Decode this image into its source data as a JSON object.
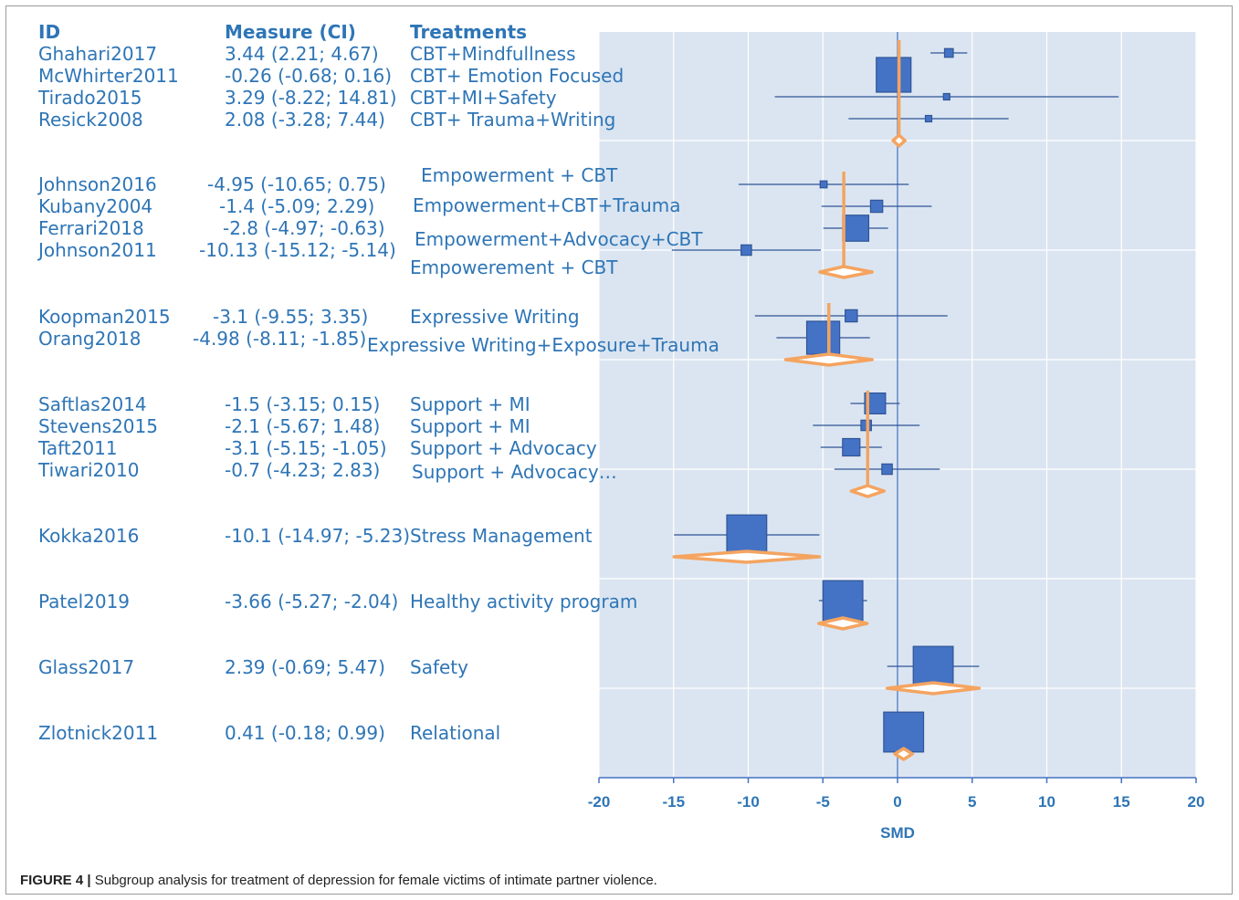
{
  "headers": {
    "id": "ID",
    "measure": "Measure (CI)",
    "treatments": "Treatments"
  },
  "caption": {
    "label": "FIGURE 4 |",
    "text": "Subgroup analysis for treatment of depression for female victims of intimate partner violence."
  },
  "colors": {
    "text": "#2e75b6",
    "box": "#4472c4",
    "line": "#2f5597",
    "diamond": "#f4a460",
    "panel": "#dbe5f1"
  },
  "chart_data": {
    "type": "forest",
    "xlabel": "SMD",
    "xlim": [
      -20,
      20
    ],
    "xticks": [
      -20,
      -15,
      -10,
      -5,
      0,
      5,
      10,
      15,
      20
    ],
    "grid": true,
    "studies": [
      {
        "id": "Ghahari2017",
        "measure": "3.44 (2.21; 4.67)",
        "treatment": "CBT+Mindfullness",
        "est": 3.44,
        "lo": 2.21,
        "hi": 4.67,
        "weight": 0.25
      },
      {
        "id": "McWhirter2011",
        "measure": "-0.26 (-0.68; 0.16)",
        "treatment": "CBT+ Emotion Focused",
        "est": -0.26,
        "lo": -0.68,
        "hi": 0.16,
        "weight": 1.0
      },
      {
        "id": "Tirado2015",
        "measure": "3.29 (-8.22; 14.81)",
        "treatment": "CBT+MI+Safety",
        "est": 3.29,
        "lo": -8.22,
        "hi": 14.81,
        "weight": 0.1
      },
      {
        "id": "Resick2008",
        "measure": "2.08 (-3.28; 7.44)",
        "treatment": "CBT+ Trauma+Writing",
        "est": 2.08,
        "lo": -3.28,
        "hi": 7.44,
        "weight": 0.12
      },
      {
        "id": "Johnson2016",
        "measure": "-4.95 (-10.65; 0.75)",
        "treatment": "Empowerment + CBT",
        "est": -4.95,
        "lo": -10.65,
        "hi": 0.75,
        "weight": 0.2
      },
      {
        "id": "Kubany2004",
        "measure": "-1.4 (-5.09; 2.29)",
        "treatment": "Empowerment+CBT+Trauma",
        "est": -1.4,
        "lo": -5.09,
        "hi": 2.29,
        "weight": 0.35
      },
      {
        "id": "Ferrari2018",
        "measure": "-2.8 (-4.97; -0.63)",
        "treatment": "Empowerment+Advocacy+CBT",
        "est": -2.8,
        "lo": -4.97,
        "hi": -0.63,
        "weight": 0.75
      },
      {
        "id": "Johnson2011",
        "measure": "-10.13 (-15.12; -5.14)",
        "treatment": "Empowerement + CBT",
        "est": -10.13,
        "lo": -15.12,
        "hi": -5.14,
        "weight": 0.3
      },
      {
        "id": "Koopman2015",
        "measure": "-3.1 (-9.55; 3.35)",
        "treatment": "Expressive Writing",
        "est": -3.1,
        "lo": -9.55,
        "hi": 3.35,
        "weight": 0.35
      },
      {
        "id": "Orang2018",
        "measure": "-4.98 (-8.11; -1.85)",
        "treatment": "Expressive Writing+Exposure+Trauma",
        "est": -4.98,
        "lo": -8.11,
        "hi": -1.85,
        "weight": 0.95
      },
      {
        "id": "Saftlas2014",
        "measure": "-1.5 (-3.15; 0.15)",
        "treatment": "Support + MI",
        "est": -1.5,
        "lo": -3.15,
        "hi": 0.15,
        "weight": 0.6
      },
      {
        "id": "Stevens2015",
        "measure": "-2.1 (-5.67; 1.48)",
        "treatment": "Support + MI",
        "est": -2.1,
        "lo": -5.67,
        "hi": 1.48,
        "weight": 0.3
      },
      {
        "id": "Taft2011",
        "measure": "-3.1 (-5.15; -1.05)",
        "treatment": "Support + Advocacy",
        "est": -3.1,
        "lo": -5.15,
        "hi": -1.05,
        "weight": 0.5
      },
      {
        "id": "Tiwari2010",
        "measure": "-0.7 (-4.23; 2.83)",
        "treatment": "Support + Advocacy…",
        "est": -0.7,
        "lo": -4.23,
        "hi": 2.83,
        "weight": 0.3
      },
      {
        "id": "Kokka2016",
        "measure": "-10.1 (-14.97; -5.23)",
        "treatment": "Stress Management",
        "est": -10.1,
        "lo": -14.97,
        "hi": -5.23,
        "weight": 1.15
      },
      {
        "id": "Patel2019",
        "measure": "-3.66 (-5.27; -2.04)",
        "treatment": "Healthy activity program",
        "est": -3.66,
        "lo": -5.27,
        "hi": -2.04,
        "weight": 1.15
      },
      {
        "id": "Glass2017",
        "measure": "2.39 (-0.69; 5.47)",
        "treatment": "Safety",
        "est": 2.39,
        "lo": -0.69,
        "hi": 5.47,
        "weight": 1.15
      },
      {
        "id": "Zlotnick2011",
        "measure": "0.41 (-0.18; 0.99)",
        "treatment": "Relational",
        "est": 0.41,
        "lo": -0.18,
        "hi": 0.99,
        "weight": 1.15
      }
    ],
    "subgroups": [
      {
        "est": 0.1,
        "lo": -0.3,
        "hi": 0.5
      },
      {
        "est": -3.6,
        "lo": -5.2,
        "hi": -1.7
      },
      {
        "est": -4.6,
        "lo": -7.5,
        "hi": -1.7
      },
      {
        "est": -2.0,
        "lo": -3.1,
        "hi": -0.9
      },
      {
        "est": -10.1,
        "lo": -14.97,
        "hi": -5.23
      },
      {
        "est": -3.66,
        "lo": -5.27,
        "hi": -2.04
      },
      {
        "est": 2.39,
        "lo": -0.69,
        "hi": 5.47
      },
      {
        "est": 0.41,
        "lo": -0.18,
        "hi": 0.99
      }
    ]
  }
}
